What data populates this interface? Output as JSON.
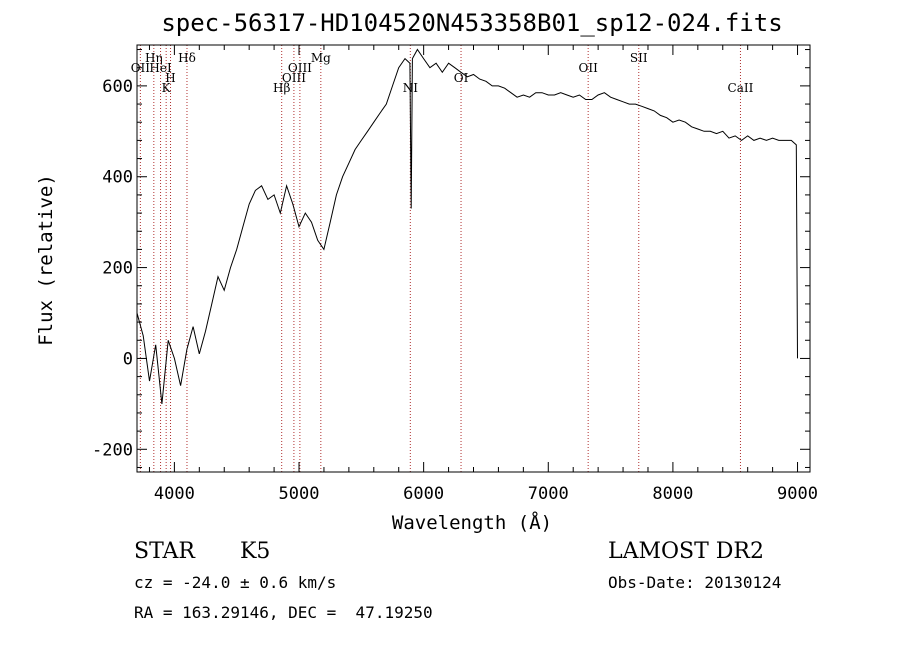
{
  "chart_data": {
    "type": "line",
    "title": "spec-56317-HD104520N453358B01_sp12-024.fits",
    "xlabel": "Wavelength (Å)",
    "ylabel": "Flux (relative)",
    "xlim": [
      3700,
      9100
    ],
    "ylim": [
      -250,
      690
    ],
    "xticks": [
      4000,
      5000,
      6000,
      7000,
      8000,
      9000
    ],
    "yticks": [
      -200,
      0,
      200,
      400,
      600
    ],
    "grid": false,
    "series": [
      {
        "x": [
          3700,
          3750,
          3800,
          3850,
          3900,
          3950,
          4000,
          4050,
          4100,
          4150,
          4200,
          4250,
          4300,
          4350,
          4400,
          4450,
          4500,
          4550,
          4600,
          4650,
          4700,
          4750,
          4800,
          4850,
          4900,
          4950,
          5000,
          5050,
          5100,
          5150,
          5200,
          5250,
          5300,
          5350,
          5400,
          5450,
          5500,
          5550,
          5600,
          5650,
          5700,
          5750,
          5800,
          5850,
          5890,
          5900,
          5910,
          5950,
          6000,
          6050,
          6100,
          6150,
          6200,
          6250,
          6300,
          6350,
          6400,
          6450,
          6500,
          6550,
          6600,
          6650,
          6700,
          6750,
          6800,
          6850,
          6900,
          6950,
          7000,
          7050,
          7100,
          7150,
          7200,
          7250,
          7300,
          7350,
          7400,
          7450,
          7500,
          7550,
          7600,
          7650,
          7700,
          7750,
          7800,
          7850,
          7900,
          7950,
          8000,
          8050,
          8100,
          8150,
          8200,
          8250,
          8300,
          8350,
          8400,
          8450,
          8500,
          8550,
          8600,
          8650,
          8700,
          8750,
          8800,
          8850,
          8900,
          8950,
          8990,
          9000
        ],
        "y": [
          100,
          50,
          -50,
          30,
          -100,
          40,
          0,
          -60,
          20,
          70,
          10,
          60,
          120,
          180,
          150,
          200,
          240,
          290,
          340,
          370,
          380,
          350,
          360,
          320,
          380,
          340,
          290,
          320,
          300,
          260,
          240,
          300,
          360,
          400,
          430,
          460,
          480,
          500,
          520,
          540,
          560,
          600,
          640,
          660,
          650,
          330,
          660,
          680,
          660,
          640,
          650,
          630,
          650,
          640,
          630,
          620,
          625,
          615,
          610,
          600,
          600,
          595,
          585,
          575,
          580,
          575,
          585,
          585,
          580,
          580,
          585,
          580,
          575,
          580,
          570,
          570,
          580,
          585,
          575,
          570,
          565,
          560,
          560,
          555,
          550,
          545,
          535,
          530,
          520,
          525,
          520,
          510,
          505,
          500,
          500,
          495,
          500,
          485,
          490,
          480,
          490,
          480,
          485,
          480,
          485,
          480,
          480,
          480,
          470,
          0
        ]
      }
    ],
    "lines": [
      {
        "label": "OII",
        "wavelength": 3727
      },
      {
        "label": "Hη",
        "wavelength": 3835
      },
      {
        "label": "K",
        "wavelength": 3934
      },
      {
        "label": "H",
        "wavelength": 3969
      },
      {
        "label": "HeI",
        "wavelength": 3889
      },
      {
        "label": "Hδ",
        "wavelength": 4101
      },
      {
        "label": "Hβ",
        "wavelength": 4861
      },
      {
        "label": "OIII",
        "wavelength": 4959
      },
      {
        "label": "OIII",
        "wavelength": 5007
      },
      {
        "label": "Mg",
        "wavelength": 5175
      },
      {
        "label": "NI",
        "wavelength": 5893
      },
      {
        "label": "OI",
        "wavelength": 6300
      },
      {
        "label": "OII",
        "wavelength": 7320
      },
      {
        "label": "SII",
        "wavelength": 7726
      },
      {
        "label": "CaII",
        "wavelength": 8542
      }
    ]
  },
  "info": {
    "object_class": "STAR",
    "subclass": "K5",
    "survey": "LAMOST DR2",
    "redshift": "cz = -24.0 ± 0.6 km/s",
    "obs_date": "Obs-Date: 20130124",
    "coords": "RA = 163.29146, DEC =  47.19250"
  }
}
